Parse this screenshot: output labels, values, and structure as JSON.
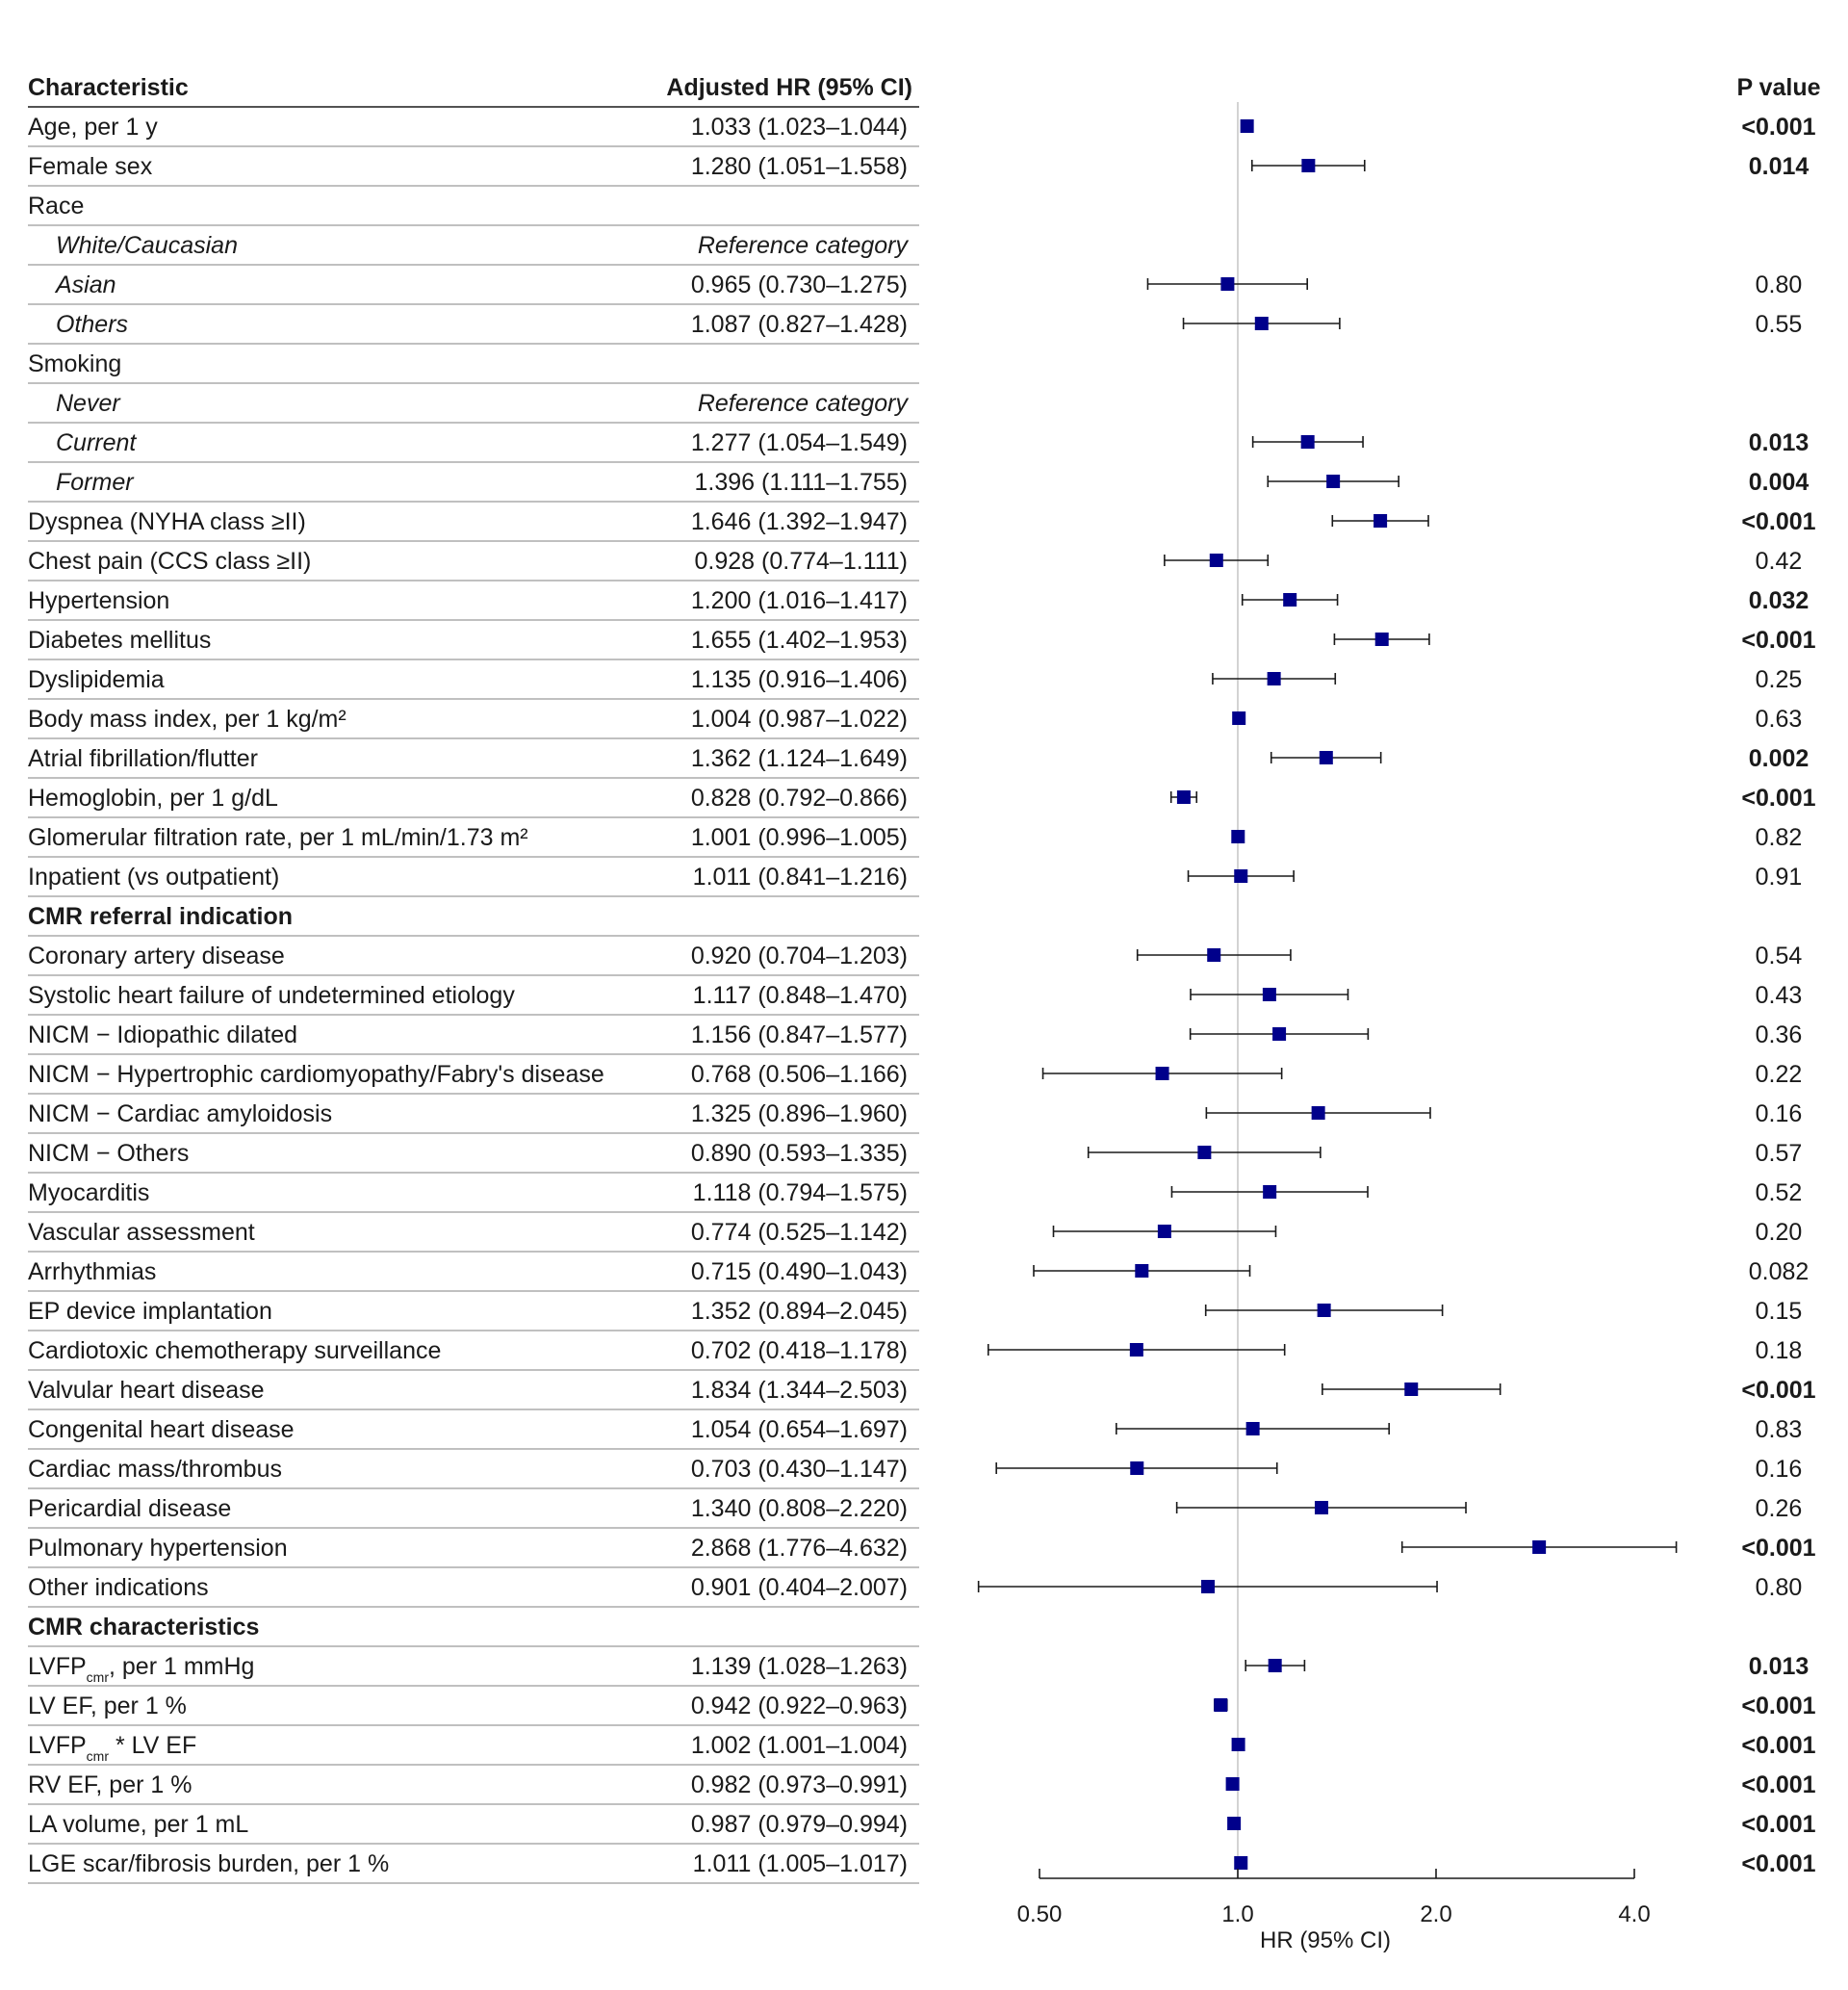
{
  "headers": {
    "characteristic": "Characteristic",
    "hr": "Adjusted HR (95% CI)",
    "p": "P value"
  },
  "chart_data": {
    "type": "forest",
    "xlabel": "HR (95% CI)",
    "x_scale": "log2",
    "xlim": [
      0.5,
      4.0
    ],
    "x_ticks": [
      "0.50",
      "1.0",
      "2.0",
      "4.0"
    ],
    "reference_line": 1.0,
    "colors": {
      "marker": "#00008b",
      "line": "#1a1a1a",
      "refline": "#c8c8c8"
    },
    "rows": [
      {
        "label": "Age, per 1 y",
        "indent": false,
        "bold": false,
        "hr_text": "1.033 (1.023–1.044)",
        "p": "<0.001",
        "p_bold": true,
        "est": 1.033,
        "lo": 1.023,
        "hi": 1.044
      },
      {
        "label": "Female sex",
        "indent": false,
        "bold": false,
        "hr_text": "1.280 (1.051–1.558)",
        "p": "0.014",
        "p_bold": true,
        "est": 1.28,
        "lo": 1.051,
        "hi": 1.558
      },
      {
        "label": "Race",
        "indent": false,
        "bold": false,
        "hr_text": "",
        "p": "",
        "p_bold": false
      },
      {
        "label": "White/Caucasian",
        "indent": true,
        "bold": false,
        "hr_text": "Reference category",
        "hr_italic": true,
        "p": "",
        "p_bold": false
      },
      {
        "label": "Asian",
        "indent": true,
        "bold": false,
        "hr_text": "0.965 (0.730–1.275)",
        "p": "0.80",
        "p_bold": false,
        "est": 0.965,
        "lo": 0.73,
        "hi": 1.275
      },
      {
        "label": "Others",
        "indent": true,
        "bold": false,
        "hr_text": "1.087 (0.827–1.428)",
        "p": "0.55",
        "p_bold": false,
        "est": 1.087,
        "lo": 0.827,
        "hi": 1.428
      },
      {
        "label": "Smoking",
        "indent": false,
        "bold": false,
        "hr_text": "",
        "p": "",
        "p_bold": false
      },
      {
        "label": "Never",
        "indent": true,
        "bold": false,
        "hr_text": "Reference category",
        "hr_italic": true,
        "p": "",
        "p_bold": false
      },
      {
        "label": "Current",
        "indent": true,
        "bold": false,
        "hr_text": "1.277 (1.054–1.549)",
        "p": "0.013",
        "p_bold": true,
        "est": 1.277,
        "lo": 1.054,
        "hi": 1.549
      },
      {
        "label": "Former",
        "indent": true,
        "bold": false,
        "hr_text": "1.396 (1.111–1.755)",
        "p": "0.004",
        "p_bold": true,
        "est": 1.396,
        "lo": 1.111,
        "hi": 1.755
      },
      {
        "label": "Dyspnea (NYHA class ≥II)",
        "indent": false,
        "bold": false,
        "hr_text": "1.646 (1.392–1.947)",
        "p": "<0.001",
        "p_bold": true,
        "est": 1.646,
        "lo": 1.392,
        "hi": 1.947
      },
      {
        "label": "Chest pain (CCS class ≥II)",
        "indent": false,
        "bold": false,
        "hr_text": "0.928 (0.774–1.111)",
        "p": "0.42",
        "p_bold": false,
        "est": 0.928,
        "lo": 0.774,
        "hi": 1.111
      },
      {
        "label": "Hypertension",
        "indent": false,
        "bold": false,
        "hr_text": "1.200 (1.016–1.417)",
        "p": "0.032",
        "p_bold": true,
        "est": 1.2,
        "lo": 1.016,
        "hi": 1.417
      },
      {
        "label": "Diabetes mellitus",
        "indent": false,
        "bold": false,
        "hr_text": "1.655 (1.402–1.953)",
        "p": "<0.001",
        "p_bold": true,
        "est": 1.655,
        "lo": 1.402,
        "hi": 1.953
      },
      {
        "label": "Dyslipidemia",
        "indent": false,
        "bold": false,
        "hr_text": "1.135 (0.916–1.406)",
        "p": "0.25",
        "p_bold": false,
        "est": 1.135,
        "lo": 0.916,
        "hi": 1.406
      },
      {
        "label": "Body mass index, per 1 kg/m²",
        "indent": false,
        "bold": false,
        "hr_text": "1.004 (0.987–1.022)",
        "p": "0.63",
        "p_bold": false,
        "est": 1.004,
        "lo": 0.987,
        "hi": 1.022
      },
      {
        "label": "Atrial fibrillation/flutter",
        "indent": false,
        "bold": false,
        "hr_text": "1.362 (1.124–1.649)",
        "p": "0.002",
        "p_bold": true,
        "est": 1.362,
        "lo": 1.124,
        "hi": 1.649
      },
      {
        "label": "Hemoglobin, per 1 g/dL",
        "indent": false,
        "bold": false,
        "hr_text": "0.828 (0.792–0.866)",
        "p": "<0.001",
        "p_bold": true,
        "est": 0.828,
        "lo": 0.792,
        "hi": 0.866
      },
      {
        "label": "Glomerular filtration rate, per 1 mL/min/1.73 m²",
        "indent": false,
        "bold": false,
        "hr_text": "1.001 (0.996–1.005)",
        "p": "0.82",
        "p_bold": false,
        "est": 1.001,
        "lo": 0.996,
        "hi": 1.005
      },
      {
        "label": "Inpatient (vs outpatient)",
        "indent": false,
        "bold": false,
        "hr_text": "1.011 (0.841–1.216)",
        "p": "0.91",
        "p_bold": false,
        "est": 1.011,
        "lo": 0.841,
        "hi": 1.216
      },
      {
        "label": "CMR referral indication",
        "indent": false,
        "bold": true,
        "hr_text": "",
        "p": "",
        "p_bold": false
      },
      {
        "label": "Coronary artery disease",
        "indent": false,
        "bold": false,
        "hr_text": "0.920 (0.704–1.203)",
        "p": "0.54",
        "p_bold": false,
        "est": 0.92,
        "lo": 0.704,
        "hi": 1.203
      },
      {
        "label": "Systolic heart failure of undetermined etiology",
        "indent": false,
        "bold": false,
        "hr_text": "1.117 (0.848–1.470)",
        "p": "0.43",
        "p_bold": false,
        "est": 1.117,
        "lo": 0.848,
        "hi": 1.47
      },
      {
        "label": "NICM − Idiopathic dilated",
        "indent": false,
        "bold": false,
        "hr_text": "1.156 (0.847–1.577)",
        "p": "0.36",
        "p_bold": false,
        "est": 1.156,
        "lo": 0.847,
        "hi": 1.577
      },
      {
        "label": "NICM − Hypertrophic cardiomyopathy/Fabry's disease",
        "indent": false,
        "bold": false,
        "hr_text": "0.768 (0.506–1.166)",
        "p": "0.22",
        "p_bold": false,
        "est": 0.768,
        "lo": 0.506,
        "hi": 1.166
      },
      {
        "label": "NICM − Cardiac amyloidosis",
        "indent": false,
        "bold": false,
        "hr_text": "1.325 (0.896–1.960)",
        "p": "0.16",
        "p_bold": false,
        "est": 1.325,
        "lo": 0.896,
        "hi": 1.96
      },
      {
        "label": "NICM − Others",
        "indent": false,
        "bold": false,
        "hr_text": "0.890 (0.593–1.335)",
        "p": "0.57",
        "p_bold": false,
        "est": 0.89,
        "lo": 0.593,
        "hi": 1.335
      },
      {
        "label": "Myocarditis",
        "indent": false,
        "bold": false,
        "hr_text": "1.118 (0.794–1.575)",
        "p": "0.52",
        "p_bold": false,
        "est": 1.118,
        "lo": 0.794,
        "hi": 1.575
      },
      {
        "label": "Vascular assessment",
        "indent": false,
        "bold": false,
        "hr_text": "0.774 (0.525–1.142)",
        "p": "0.20",
        "p_bold": false,
        "est": 0.774,
        "lo": 0.525,
        "hi": 1.142
      },
      {
        "label": "Arrhythmias",
        "indent": false,
        "bold": false,
        "hr_text": "0.715 (0.490–1.043)",
        "p": "0.082",
        "p_bold": false,
        "est": 0.715,
        "lo": 0.49,
        "hi": 1.043
      },
      {
        "label": "EP device implantation",
        "indent": false,
        "bold": false,
        "hr_text": "1.352 (0.894–2.045)",
        "p": "0.15",
        "p_bold": false,
        "est": 1.352,
        "lo": 0.894,
        "hi": 2.045
      },
      {
        "label": "Cardiotoxic chemotherapy surveillance",
        "indent": false,
        "bold": false,
        "hr_text": "0.702 (0.418–1.178)",
        "p": "0.18",
        "p_bold": false,
        "est": 0.702,
        "lo": 0.418,
        "hi": 1.178
      },
      {
        "label": "Valvular heart disease",
        "indent": false,
        "bold": false,
        "hr_text": "1.834 (1.344–2.503)",
        "p": "<0.001",
        "p_bold": true,
        "est": 1.834,
        "lo": 1.344,
        "hi": 2.503
      },
      {
        "label": "Congenital heart disease",
        "indent": false,
        "bold": false,
        "hr_text": "1.054 (0.654–1.697)",
        "p": "0.83",
        "p_bold": false,
        "est": 1.054,
        "lo": 0.654,
        "hi": 1.697
      },
      {
        "label": "Cardiac mass/thrombus",
        "indent": false,
        "bold": false,
        "hr_text": "0.703 (0.430–1.147)",
        "p": "0.16",
        "p_bold": false,
        "est": 0.703,
        "lo": 0.43,
        "hi": 1.147
      },
      {
        "label": "Pericardial disease",
        "indent": false,
        "bold": false,
        "hr_text": "1.340 (0.808–2.220)",
        "p": "0.26",
        "p_bold": false,
        "est": 1.34,
        "lo": 0.808,
        "hi": 2.22
      },
      {
        "label": "Pulmonary hypertension",
        "indent": false,
        "bold": false,
        "hr_text": "2.868 (1.776–4.632)",
        "p": "<0.001",
        "p_bold": true,
        "est": 2.868,
        "lo": 1.776,
        "hi": 4.632
      },
      {
        "label": "Other indications",
        "indent": false,
        "bold": false,
        "hr_text": "0.901 (0.404–2.007)",
        "p": "0.80",
        "p_bold": false,
        "est": 0.901,
        "lo": 0.404,
        "hi": 2.007
      },
      {
        "label": "CMR characteristics",
        "indent": false,
        "bold": true,
        "hr_text": "",
        "p": "",
        "p_bold": false
      },
      {
        "label": "LVFP",
        "label_sub": "cmr",
        "label_after": ", per 1 mmHg",
        "indent": false,
        "bold": false,
        "hr_text": "1.139 (1.028–1.263)",
        "p": "0.013",
        "p_bold": true,
        "est": 1.139,
        "lo": 1.028,
        "hi": 1.263
      },
      {
        "label": "LV EF, per 1 %",
        "indent": false,
        "bold": false,
        "hr_text": "0.942 (0.922–0.963)",
        "p": "<0.001",
        "p_bold": true,
        "est": 0.942,
        "lo": 0.922,
        "hi": 0.963
      },
      {
        "label": "LVFP",
        "label_sub": "cmr",
        "label_after": " * LV EF",
        "indent": false,
        "bold": false,
        "hr_text": "1.002 (1.001–1.004)",
        "p": "<0.001",
        "p_bold": true,
        "est": 1.002,
        "lo": 1.001,
        "hi": 1.004
      },
      {
        "label": "RV EF, per 1 %",
        "indent": false,
        "bold": false,
        "hr_text": "0.982 (0.973–0.991)",
        "p": "<0.001",
        "p_bold": true,
        "est": 0.982,
        "lo": 0.973,
        "hi": 0.991
      },
      {
        "label": "LA volume, per 1 mL",
        "indent": false,
        "bold": false,
        "hr_text": "0.987 (0.979–0.994)",
        "p": "<0.001",
        "p_bold": true,
        "est": 0.987,
        "lo": 0.979,
        "hi": 0.994
      },
      {
        "label": "LGE scar/fibrosis burden, per 1 %",
        "indent": false,
        "bold": false,
        "hr_text": "1.011 (1.005–1.017)",
        "p": "<0.001",
        "p_bold": true,
        "est": 1.011,
        "lo": 1.005,
        "hi": 1.017
      }
    ]
  }
}
